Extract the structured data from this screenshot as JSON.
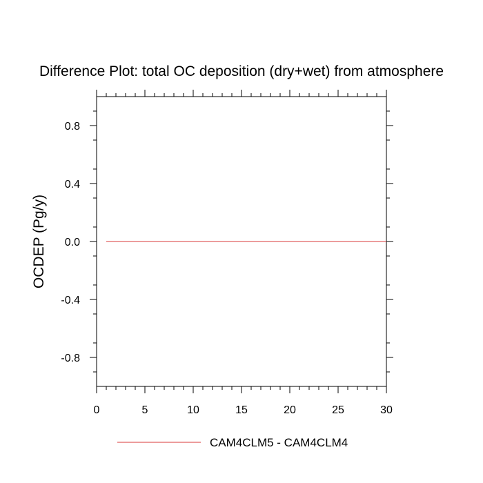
{
  "chart_data": {
    "type": "line",
    "title": "Difference Plot: total OC deposition (dry+wet) from atmosphere",
    "xlabel": "",
    "ylabel": "OCDEP  (Pg/y)",
    "xlim": [
      0,
      30
    ],
    "ylim": [
      -1.0,
      1.0
    ],
    "x_ticks": [
      0,
      5,
      10,
      15,
      20,
      25,
      30
    ],
    "x_tick_labels": [
      "0",
      "5",
      "10",
      "15",
      "20",
      "25",
      "30"
    ],
    "y_ticks": [
      0.8,
      0.4,
      0.0,
      -0.4,
      -0.8
    ],
    "y_tick_labels": [
      "0.8",
      "0.4",
      "0.0",
      "-0.4",
      "-0.8"
    ],
    "grid": false,
    "legend_position": "bottom",
    "series": [
      {
        "name": "CAM4CLM5 - CAM4CLM4",
        "color": "#e06060",
        "x": [
          1,
          30
        ],
        "y": [
          0.0,
          0.0
        ]
      }
    ]
  }
}
